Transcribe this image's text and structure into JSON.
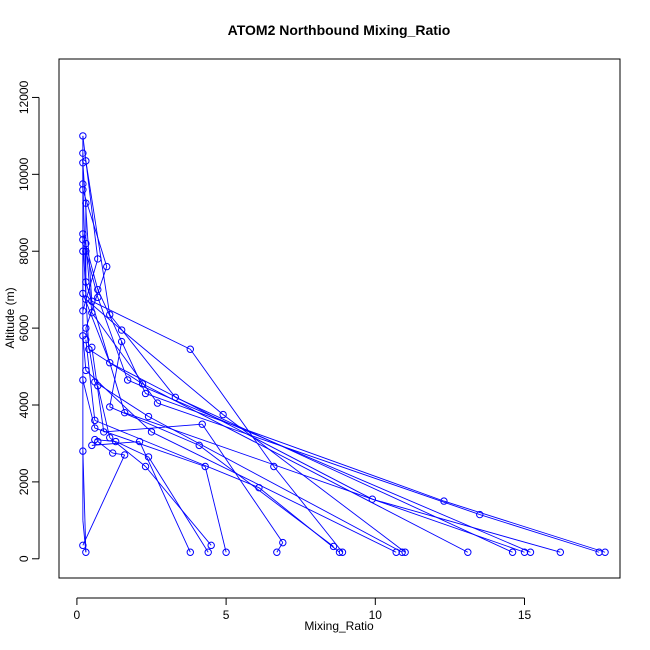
{
  "chart_data": {
    "type": "scatter",
    "title": "ATOM2 Northbound Mixing_Ratio",
    "xlabel": "Mixing_Ratio",
    "ylabel": "Altitude (m)",
    "xlim": [
      -0.6,
      18.2
    ],
    "ylim": [
      -500,
      13000
    ],
    "xticks": [
      0,
      5,
      10,
      15
    ],
    "yticks": [
      0,
      2000,
      4000,
      6000,
      8000,
      10000,
      12000
    ],
    "grid": false,
    "legend": "none",
    "colors": {
      "series": "#0000ff",
      "axis": "#000000"
    },
    "series": [
      {
        "marker": "open-circle",
        "connect": "line",
        "points": [
          [
            0.2,
            11000
          ],
          [
            0.2,
            10550
          ],
          [
            0.3,
            10350
          ],
          [
            0.2,
            10300
          ],
          [
            0.2,
            9750
          ],
          [
            0.2,
            9600
          ],
          [
            0.3,
            9250
          ],
          [
            0.2,
            8450
          ],
          [
            0.2,
            8300
          ],
          [
            0.3,
            8200
          ],
          [
            0.3,
            8000
          ],
          [
            0.2,
            8000
          ],
          [
            0.7,
            7800
          ],
          [
            1.0,
            7600
          ],
          [
            0.3,
            7200
          ],
          [
            0.7,
            7000
          ],
          [
            0.2,
            6900
          ],
          [
            0.3,
            6750
          ],
          [
            0.5,
            6700
          ],
          [
            0.7,
            6800
          ],
          [
            0.2,
            6450
          ],
          [
            0.5,
            6400
          ],
          [
            1.1,
            6350
          ],
          [
            0.3,
            6000
          ],
          [
            1.5,
            5950
          ],
          [
            0.2,
            5800
          ],
          [
            0.3,
            5700
          ],
          [
            1.5,
            5650
          ],
          [
            0.5,
            5500
          ],
          [
            3.8,
            5450
          ],
          [
            0.4,
            5450
          ],
          [
            1.1,
            5100
          ],
          [
            0.3,
            4900
          ],
          [
            0.2,
            4650
          ],
          [
            0.6,
            4600
          ],
          [
            1.7,
            4650
          ],
          [
            2.2,
            4550
          ],
          [
            0.7,
            4500
          ],
          [
            2.3,
            4300
          ],
          [
            3.3,
            4200
          ],
          [
            2.7,
            4050
          ],
          [
            1.1,
            3950
          ],
          [
            1.6,
            3800
          ],
          [
            4.9,
            3750
          ],
          [
            2.4,
            3700
          ],
          [
            0.6,
            3600
          ],
          [
            0.6,
            3400
          ],
          [
            0.9,
            3300
          ],
          [
            4.2,
            3500
          ],
          [
            2.5,
            3300
          ],
          [
            1.1,
            3150
          ],
          [
            0.6,
            3100
          ],
          [
            1.3,
            3050
          ],
          [
            0.5,
            2950
          ],
          [
            0.7,
            3050
          ],
          [
            2.1,
            3050
          ],
          [
            4.1,
            2950
          ],
          [
            0.2,
            2800
          ],
          [
            1.2,
            2750
          ],
          [
            1.6,
            2700
          ],
          [
            2.4,
            2650
          ],
          [
            2.3,
            2400
          ],
          [
            4.3,
            2400
          ],
          [
            6.6,
            2400
          ],
          [
            6.1,
            1850
          ],
          [
            9.9,
            1550
          ],
          [
            12.3,
            1500
          ],
          [
            13.5,
            1150
          ],
          [
            4.5,
            350
          ],
          [
            3.8,
            170
          ],
          [
            4.4,
            170
          ],
          [
            5.0,
            170
          ],
          [
            6.7,
            170
          ],
          [
            6.9,
            420
          ],
          [
            8.6,
            320
          ],
          [
            8.8,
            170
          ],
          [
            8.9,
            170
          ],
          [
            10.7,
            170
          ],
          [
            10.9,
            170
          ],
          [
            11.0,
            170
          ],
          [
            13.1,
            170
          ],
          [
            14.6,
            170
          ],
          [
            15.0,
            170
          ],
          [
            15.2,
            170
          ],
          [
            16.2,
            170
          ],
          [
            17.5,
            170
          ],
          [
            17.7,
            170
          ],
          [
            0.2,
            350
          ],
          [
            0.3,
            170
          ]
        ],
        "segments": [
          [
            0.2,
            11000,
            0.3,
            10350
          ],
          [
            0.3,
            10350,
            0.7,
            7800
          ],
          [
            0.7,
            7800,
            0.2,
            6450
          ],
          [
            0.2,
            10550,
            0.2,
            9600
          ],
          [
            0.2,
            9600,
            1.0,
            7600
          ],
          [
            1.0,
            7600,
            0.3,
            6000
          ],
          [
            0.2,
            10300,
            0.5,
            6700
          ],
          [
            0.5,
            6700,
            3.8,
            5450
          ],
          [
            3.8,
            5450,
            6.6,
            2400
          ],
          [
            6.6,
            2400,
            8.9,
            170
          ],
          [
            0.3,
            9250,
            0.3,
            6750
          ],
          [
            0.3,
            6750,
            1.5,
            5950
          ],
          [
            1.5,
            5950,
            4.9,
            3750
          ],
          [
            4.9,
            3750,
            11.0,
            170
          ],
          [
            0.2,
            8450,
            0.7,
            7000
          ],
          [
            0.7,
            7000,
            2.3,
            4300
          ],
          [
            2.3,
            4300,
            12.3,
            1500
          ],
          [
            12.3,
            1500,
            17.7,
            170
          ],
          [
            0.3,
            8200,
            0.5,
            6400
          ],
          [
            0.5,
            6400,
            2.7,
            4050
          ],
          [
            2.7,
            4050,
            13.5,
            1150
          ],
          [
            13.5,
            1150,
            17.5,
            170
          ],
          [
            0.2,
            8000,
            0.2,
            6900
          ],
          [
            0.2,
            6900,
            1.1,
            5100
          ],
          [
            1.1,
            5100,
            9.9,
            1550
          ],
          [
            9.9,
            1550,
            16.2,
            170
          ],
          [
            0.3,
            8000,
            0.7,
            6800
          ],
          [
            0.7,
            6800,
            1.7,
            4650
          ],
          [
            1.7,
            4650,
            15.2,
            170
          ],
          [
            0.2,
            9750,
            0.3,
            7200
          ],
          [
            0.3,
            7200,
            1.6,
            3800
          ],
          [
            1.6,
            3800,
            15.0,
            170
          ],
          [
            0.3,
            10350,
            1.1,
            6350
          ],
          [
            1.1,
            6350,
            3.3,
            4200
          ],
          [
            3.3,
            4200,
            14.6,
            170
          ],
          [
            0.2,
            8300,
            0.4,
            5450
          ],
          [
            0.4,
            5450,
            2.2,
            4550
          ],
          [
            2.2,
            4550,
            13.1,
            170
          ],
          [
            0.3,
            6000,
            0.6,
            4600
          ],
          [
            0.6,
            4600,
            2.4,
            3700
          ],
          [
            2.4,
            3700,
            10.9,
            170
          ],
          [
            0.2,
            5800,
            0.3,
            4900
          ],
          [
            0.3,
            4900,
            2.5,
            3300
          ],
          [
            2.5,
            3300,
            10.7,
            170
          ],
          [
            0.3,
            5700,
            0.6,
            3600
          ],
          [
            0.6,
            3600,
            6.1,
            1850
          ],
          [
            6.1,
            1850,
            8.8,
            170
          ],
          [
            1.5,
            5650,
            1.1,
            3950
          ],
          [
            1.1,
            3950,
            4.1,
            2950
          ],
          [
            4.1,
            2950,
            8.6,
            320
          ],
          [
            0.5,
            5500,
            0.9,
            3300
          ],
          [
            0.9,
            3300,
            4.2,
            3500
          ],
          [
            4.2,
            3500,
            6.9,
            420
          ],
          [
            6.9,
            420,
            6.7,
            170
          ],
          [
            0.2,
            4650,
            0.6,
            3400
          ],
          [
            0.6,
            3400,
            4.3,
            2400
          ],
          [
            4.3,
            2400,
            5.0,
            170
          ],
          [
            0.7,
            4500,
            1.1,
            3150
          ],
          [
            1.1,
            3150,
            2.3,
            2400
          ],
          [
            2.3,
            2400,
            4.5,
            350
          ],
          [
            0.6,
            3100,
            1.3,
            3050
          ],
          [
            1.3,
            3050,
            2.4,
            2650
          ],
          [
            2.4,
            2650,
            4.4,
            170
          ],
          [
            0.5,
            2950,
            2.1,
            3050
          ],
          [
            2.1,
            3050,
            3.8,
            170
          ],
          [
            0.7,
            3050,
            1.2,
            2750
          ],
          [
            1.2,
            2750,
            1.6,
            2700
          ],
          [
            1.6,
            2700,
            0.2,
            350
          ],
          [
            0.2,
            2800,
            0.3,
            170
          ],
          [
            0.3,
            170,
            0.2,
            1000
          ],
          [
            0.2,
            1000,
            0.2,
            11000
          ]
        ]
      }
    ]
  }
}
